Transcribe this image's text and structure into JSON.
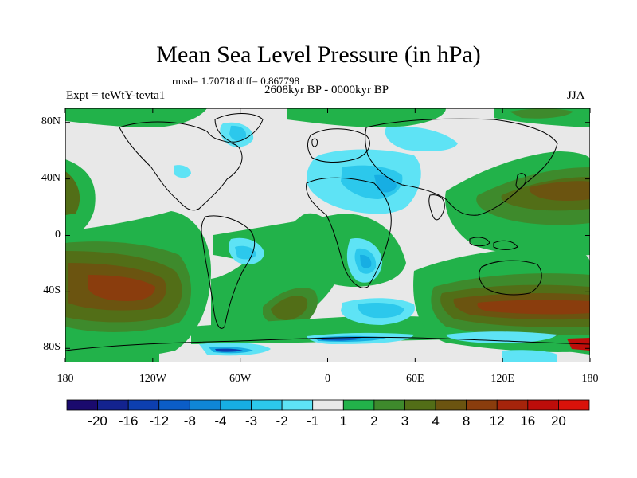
{
  "title": "Mean Sea Level Pressure (in hPa)",
  "stats": "rmsd= 1.70718 diff= 0.867798",
  "period": "2608kyr BP - 0000kyr BP",
  "experiment": "Expt = teWtY-tevta1",
  "season": "JJA",
  "map": {
    "lat_labels": [
      "80N",
      "40N",
      "0",
      "40S",
      "80S"
    ],
    "lat_values": [
      80,
      40,
      0,
      -40,
      -80
    ],
    "lon_labels": [
      "180",
      "120W",
      "60W",
      "0",
      "60E",
      "120E",
      "180"
    ],
    "lon_values": [
      -180,
      -120,
      -60,
      0,
      60,
      120,
      180
    ],
    "lat_range": [
      -90,
      90
    ],
    "lon_range": [
      -180,
      180
    ]
  },
  "colorbar": {
    "labels": [
      "-20",
      "-16",
      "-12",
      "-8",
      "-4",
      "-3",
      "-2",
      "-1",
      "1",
      "2",
      "3",
      "4",
      "8",
      "12",
      "16",
      "20"
    ],
    "colors": [
      "#1a0a6e",
      "#13238f",
      "#0d3fb0",
      "#0b5dc7",
      "#0f86d6",
      "#17aee3",
      "#2cc8ec",
      "#5ee3f5",
      "#e8e8e8",
      "#22b24a",
      "#3e8a2c",
      "#526e17",
      "#6b5410",
      "#8a3d0d",
      "#a5240b",
      "#bd0d0a",
      "#d9120a"
    ]
  },
  "colors": {
    "land_outline": "#000000",
    "neutral": "#e8e8e8"
  }
}
